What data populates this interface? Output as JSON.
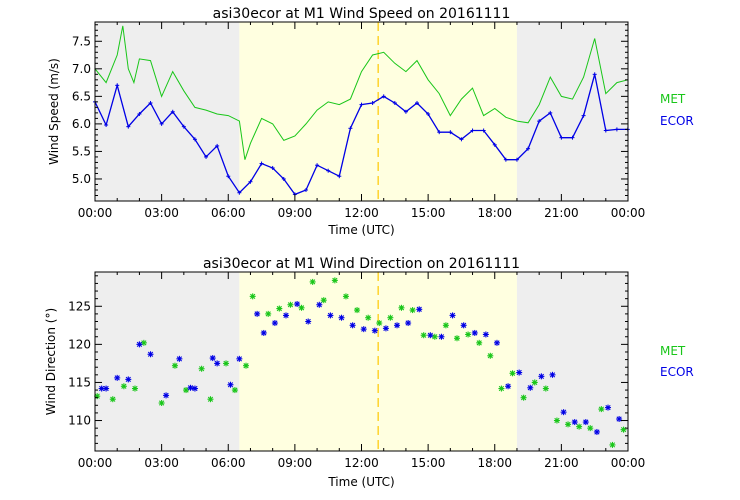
{
  "colors": {
    "met": "#19c619",
    "ecor": "#0000e6",
    "night": "#eeeeee",
    "day": "#ffffe0",
    "noon_line": "#ffc800",
    "axis": "#000000"
  },
  "chart_data": [
    {
      "type": "line",
      "title": "asi30ecor at M1 Wind Speed on 20161111",
      "xlabel": "Time (UTC)",
      "ylabel": "Wind Speed (m/s)",
      "xlim": [
        0,
        24
      ],
      "ylim": [
        4.6,
        7.85
      ],
      "x_ticks": [
        0,
        3,
        6,
        9,
        12,
        15,
        18,
        21,
        24
      ],
      "x_tick_labels": [
        "00:00",
        "03:00",
        "06:00",
        "09:00",
        "12:00",
        "15:00",
        "18:00",
        "21:00",
        "00:00"
      ],
      "y_ticks": [
        5.0,
        5.5,
        6.0,
        6.5,
        7.0,
        7.5
      ],
      "y_tick_labels": [
        "5.0",
        "5.5",
        "6.0",
        "6.5",
        "7.0",
        "7.5"
      ],
      "shading": {
        "night_before": [
          0,
          6.5
        ],
        "day": [
          6.5,
          19.0
        ],
        "night_after": [
          19.0,
          24
        ]
      },
      "marker_x": 12.75,
      "legend": [
        "MET",
        "ECOR"
      ],
      "series": [
        {
          "name": "MET",
          "x": [
            0.0,
            0.5,
            1.0,
            1.25,
            1.5,
            1.75,
            2.0,
            2.5,
            3.0,
            3.5,
            4.0,
            4.5,
            5.0,
            5.5,
            6.0,
            6.5,
            6.75,
            7.0,
            7.5,
            8.0,
            8.5,
            9.0,
            9.5,
            10.0,
            10.5,
            11.0,
            11.5,
            12.0,
            12.5,
            13.0,
            13.5,
            14.0,
            14.5,
            15.0,
            15.5,
            16.0,
            16.5,
            17.0,
            17.5,
            18.0,
            18.5,
            19.0,
            19.5,
            20.0,
            20.5,
            21.0,
            21.5,
            22.0,
            22.5,
            23.0,
            23.5,
            23.99
          ],
          "values": [
            7.0,
            6.75,
            7.25,
            7.78,
            7.0,
            6.75,
            7.18,
            7.15,
            6.5,
            6.95,
            6.6,
            6.3,
            6.25,
            6.18,
            6.15,
            6.05,
            5.35,
            5.65,
            6.1,
            6.0,
            5.7,
            5.78,
            6.0,
            6.25,
            6.4,
            6.35,
            6.45,
            6.95,
            7.25,
            7.3,
            7.1,
            6.95,
            7.15,
            6.8,
            6.55,
            6.15,
            6.45,
            6.65,
            6.15,
            6.28,
            6.12,
            6.05,
            6.02,
            6.35,
            6.85,
            6.5,
            6.45,
            6.85,
            7.55,
            6.55,
            6.75,
            6.8
          ]
        },
        {
          "name": "ECOR",
          "x": [
            0.0,
            0.5,
            1.0,
            1.5,
            2.0,
            2.5,
            3.0,
            3.5,
            4.0,
            4.5,
            5.0,
            5.5,
            6.0,
            6.5,
            7.0,
            7.5,
            8.0,
            8.5,
            9.0,
            9.5,
            10.0,
            10.5,
            11.0,
            11.5,
            12.0,
            12.5,
            13.0,
            13.5,
            14.0,
            14.5,
            15.0,
            15.5,
            16.0,
            16.5,
            17.0,
            17.5,
            18.0,
            18.5,
            19.0,
            19.5,
            20.0,
            20.5,
            21.0,
            21.5,
            22.0,
            22.5,
            23.0,
            23.5,
            23.99
          ],
          "values": [
            6.4,
            5.98,
            6.7,
            5.95,
            6.18,
            6.38,
            6.0,
            6.22,
            5.95,
            5.72,
            5.4,
            5.6,
            5.05,
            4.75,
            4.95,
            5.28,
            5.2,
            5.0,
            4.72,
            4.8,
            5.25,
            5.15,
            5.05,
            5.92,
            6.35,
            6.38,
            6.5,
            6.38,
            6.22,
            6.38,
            6.18,
            5.85,
            5.85,
            5.72,
            5.88,
            5.88,
            5.62,
            5.35,
            5.35,
            5.55,
            6.05,
            6.2,
            5.75,
            5.75,
            6.15,
            6.9,
            5.88,
            5.9,
            5.9
          ]
        }
      ]
    },
    {
      "type": "scatter",
      "title": "asi30ecor at M1 Wind Direction on 20161111",
      "xlabel": "Time (UTC)",
      "ylabel": "Wind Direction (°)",
      "xlim": [
        0,
        24
      ],
      "ylim": [
        106,
        129.5
      ],
      "x_ticks": [
        0,
        3,
        6,
        9,
        12,
        15,
        18,
        21,
        24
      ],
      "x_tick_labels": [
        "00:00",
        "03:00",
        "06:00",
        "09:00",
        "12:00",
        "15:00",
        "18:00",
        "21:00",
        "00:00"
      ],
      "y_ticks": [
        110,
        115,
        120,
        125
      ],
      "y_tick_labels": [
        "110",
        "115",
        "120",
        "125"
      ],
      "shading": {
        "night_before": [
          0,
          6.5
        ],
        "day": [
          6.5,
          19.0
        ],
        "night_after": [
          19.0,
          24
        ]
      },
      "marker_x": 12.75,
      "legend": [
        "MET",
        "ECOR"
      ],
      "series": [
        {
          "name": "MET",
          "x": [
            0.1,
            0.8,
            1.3,
            1.8,
            2.2,
            3.0,
            3.6,
            4.1,
            4.8,
            5.2,
            5.9,
            6.3,
            6.8,
            7.1,
            7.8,
            8.3,
            8.8,
            9.3,
            9.8,
            10.3,
            10.8,
            11.3,
            11.8,
            12.3,
            12.8,
            13.3,
            13.8,
            14.3,
            14.8,
            15.3,
            15.8,
            16.3,
            16.8,
            17.3,
            17.8,
            18.3,
            18.8,
            19.3,
            19.8,
            20.3,
            20.8,
            21.3,
            21.8,
            22.3,
            22.8,
            23.3,
            23.8
          ],
          "values": [
            113.2,
            112.8,
            114.5,
            114.2,
            120.2,
            112.3,
            117.2,
            114.0,
            116.8,
            112.8,
            117.5,
            114.0,
            117.2,
            126.3,
            124.0,
            124.7,
            125.2,
            124.8,
            128.2,
            125.8,
            128.4,
            126.3,
            124.5,
            123.5,
            122.8,
            123.5,
            124.8,
            124.5,
            121.2,
            121.0,
            122.5,
            120.8,
            121.3,
            120.2,
            118.5,
            114.2,
            116.2,
            113.0,
            115.0,
            114.2,
            110.0,
            109.5,
            109.2,
            109.0,
            111.5,
            106.8,
            108.8
          ]
        },
        {
          "name": "ECOR",
          "x": [
            0.3,
            0.5,
            1.0,
            1.5,
            2.0,
            2.5,
            3.2,
            3.8,
            4.3,
            4.5,
            5.3,
            5.5,
            6.1,
            6.5,
            7.3,
            7.6,
            8.1,
            8.6,
            9.1,
            9.6,
            10.1,
            10.6,
            11.1,
            11.6,
            12.1,
            12.6,
            13.1,
            13.6,
            14.1,
            14.6,
            15.1,
            15.6,
            16.1,
            16.6,
            17.1,
            17.6,
            18.1,
            18.6,
            19.1,
            19.6,
            20.1,
            20.6,
            21.1,
            21.6,
            22.1,
            22.6,
            23.1,
            23.6
          ],
          "values": [
            114.2,
            114.2,
            115.6,
            115.4,
            120.0,
            118.7,
            113.3,
            118.1,
            114.3,
            114.2,
            118.2,
            117.5,
            114.7,
            118.1,
            124.0,
            121.5,
            122.8,
            123.8,
            125.3,
            123.0,
            125.2,
            123.8,
            123.5,
            122.5,
            122.0,
            121.8,
            122.1,
            122.5,
            122.8,
            124.6,
            121.2,
            121.0,
            123.8,
            122.5,
            121.5,
            121.3,
            120.2,
            114.5,
            116.3,
            114.3,
            115.8,
            116.0,
            111.1,
            109.8,
            109.8,
            108.5,
            111.7,
            110.2
          ]
        }
      ]
    }
  ]
}
